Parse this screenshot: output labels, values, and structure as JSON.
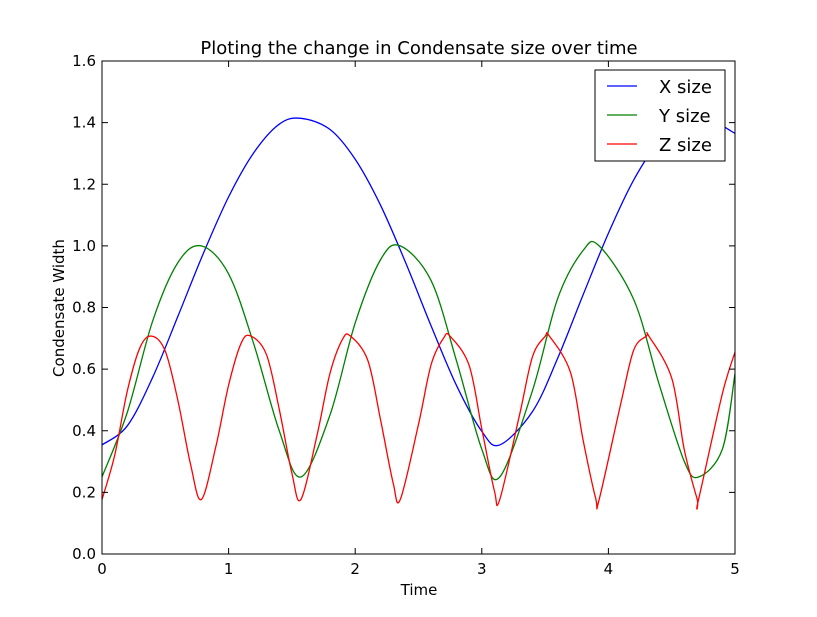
{
  "chart_data": {
    "type": "line",
    "title": "Ploting the change in Condensate size over time",
    "xlabel": "Time",
    "ylabel": "Condensate Width",
    "xlim": [
      0,
      5
    ],
    "ylim": [
      0.0,
      1.6
    ],
    "xticks": [
      "0",
      "1",
      "2",
      "3",
      "4",
      "5"
    ],
    "yticks": [
      "0.0",
      "0.2",
      "0.4",
      "0.6",
      "0.8",
      "1.0",
      "1.2",
      "1.4",
      "1.6"
    ],
    "grid": false,
    "legend_position": "top-right",
    "series": [
      {
        "name": "X size",
        "color": "#0000ff",
        "x": [
          0,
          0.2,
          0.4,
          0.6,
          0.8,
          1.0,
          1.2,
          1.4,
          1.571,
          1.8,
          2.0,
          2.2,
          2.4,
          2.6,
          2.8,
          3.0,
          3.142,
          3.4,
          3.6,
          3.8,
          4.0,
          4.2,
          4.4,
          4.6,
          4.8,
          5.0
        ],
        "y": [
          0.354,
          0.416,
          0.573,
          0.772,
          0.975,
          1.159,
          1.303,
          1.395,
          1.414,
          1.378,
          1.281,
          1.132,
          0.944,
          0.74,
          0.547,
          0.398,
          0.354,
          0.462,
          0.636,
          0.841,
          1.041,
          1.214,
          1.339,
          1.41,
          1.409,
          1.365
        ]
      },
      {
        "name": "Y size",
        "color": "#008000",
        "x": [
          0,
          0.2,
          0.4,
          0.6,
          0.785,
          1.0,
          1.2,
          1.4,
          1.571,
          1.8,
          2.0,
          2.2,
          2.356,
          2.6,
          2.8,
          3.0,
          3.142,
          3.4,
          3.6,
          3.8,
          3.927,
          4.2,
          4.4,
          4.6,
          4.712,
          4.9,
          5.0
        ],
        "y": [
          0.25,
          0.46,
          0.756,
          0.946,
          1.0,
          0.909,
          0.68,
          0.4,
          0.25,
          0.45,
          0.75,
          0.955,
          1.0,
          0.887,
          0.627,
          0.34,
          0.25,
          0.53,
          0.83,
          0.985,
          1.0,
          0.826,
          0.552,
          0.3,
          0.25,
          0.34,
          0.585
        ]
      },
      {
        "name": "Z size",
        "color": "#ff0000",
        "x": [
          0,
          0.1,
          0.2,
          0.3,
          0.393,
          0.5,
          0.6,
          0.7,
          0.785,
          0.9,
          1.0,
          1.1,
          1.178,
          1.3,
          1.4,
          1.5,
          1.571,
          1.7,
          1.8,
          1.9,
          1.963,
          2.1,
          2.2,
          2.3,
          2.356,
          2.5,
          2.6,
          2.7,
          2.749,
          2.9,
          3.0,
          3.1,
          3.142,
          3.3,
          3.4,
          3.5,
          3.534,
          3.7,
          3.8,
          3.9,
          3.927,
          4.1,
          4.2,
          4.3,
          4.32,
          4.5,
          4.6,
          4.7,
          4.712,
          4.9,
          5.0
        ],
        "y": [
          0.177,
          0.32,
          0.529,
          0.67,
          0.707,
          0.658,
          0.497,
          0.29,
          0.177,
          0.35,
          0.548,
          0.685,
          0.707,
          0.646,
          0.47,
          0.262,
          0.177,
          0.388,
          0.585,
          0.697,
          0.707,
          0.628,
          0.436,
          0.23,
          0.177,
          0.421,
          0.615,
          0.702,
          0.707,
          0.612,
          0.406,
          0.204,
          0.177,
          0.455,
          0.64,
          0.706,
          0.707,
          0.59,
          0.37,
          0.18,
          0.177,
          0.492,
          0.662,
          0.707,
          0.707,
          0.571,
          0.337,
          0.18,
          0.177,
          0.52,
          0.655
        ]
      }
    ]
  }
}
